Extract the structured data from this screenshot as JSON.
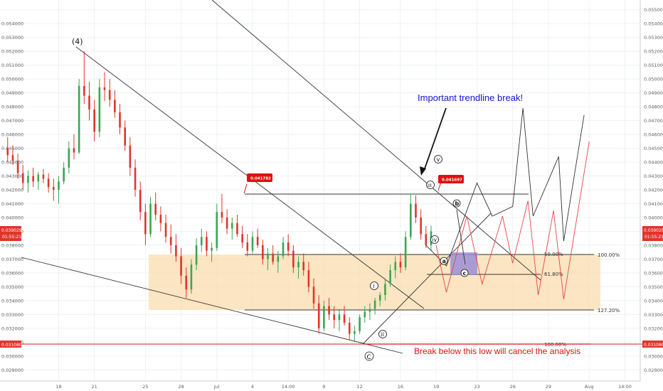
{
  "chart_data": {
    "type": "candlestick",
    "y_ticks": [
      "0.055000",
      "0.054000",
      "0.053000",
      "0.052000",
      "0.051000",
      "0.050000",
      "0.049000",
      "0.048000",
      "0.047000",
      "0.046000",
      "0.045000",
      "0.044000",
      "0.043000",
      "0.042000",
      "0.041000",
      "0.040000",
      "0.039000",
      "0.038000",
      "0.037000",
      "0.036000",
      "0.035000",
      "0.034000",
      "0.033000",
      "0.032000",
      "0.031000",
      "0.030000",
      "0.029000"
    ],
    "y_tick_values": [
      0.055,
      0.054,
      0.053,
      0.052,
      0.051,
      0.05,
      0.049,
      0.048,
      0.047,
      0.046,
      0.045,
      0.044,
      0.043,
      0.042,
      0.041,
      0.04,
      0.039,
      0.038,
      0.037,
      0.036,
      0.035,
      0.034,
      0.033,
      0.032,
      0.031,
      0.03,
      0.029
    ],
    "ylim": [
      0.0285,
      0.0555
    ],
    "x_ticks": [
      "18",
      "21",
      "25",
      "28",
      "Jul",
      "4",
      "14:00",
      "9",
      "12",
      "16",
      "19",
      "23",
      "26",
      "29",
      "Aug",
      "14:00"
    ],
    "x_tick_bars": [
      10,
      17,
      27,
      34,
      41,
      48,
      55,
      62,
      69,
      77,
      84,
      92,
      99,
      106,
      114,
      121
    ],
    "x_bar_range": [
      -1.5,
      124
    ],
    "current_price": {
      "value": 0.039029,
      "label": "0.039029",
      "time": "01:55:21"
    },
    "low_price": {
      "value": 0.03108,
      "label": "0.031080"
    },
    "callouts": [
      {
        "label": "0.041782",
        "bar": 42,
        "price": 0.041782
      },
      {
        "label": "0.041697",
        "bar": 80,
        "price": 0.041697
      }
    ],
    "fib_levels": [
      {
        "label": "50.00%",
        "price": 0.0373
      },
      {
        "label": "100.00%",
        "price": 0.0373
      },
      {
        "label": "61.80%",
        "price": 0.0359
      },
      {
        "label": "127.20%",
        "price": 0.0335
      },
      {
        "label": "100.00%",
        "price": 0.0311
      }
    ],
    "wave_labels": [
      "(4)",
      "C",
      "i",
      "ii",
      "iii",
      "iv",
      "v",
      "a",
      "b",
      "c"
    ],
    "annotations": {
      "trendline_break": "Important trendline break!",
      "cancel": "Break below this low will cancel the analysis"
    },
    "ohlc": [
      [
        0.045,
        0.0458,
        0.044,
        0.0445
      ],
      [
        0.0445,
        0.0452,
        0.0438,
        0.0441
      ],
      [
        0.0441,
        0.0446,
        0.0428,
        0.0432
      ],
      [
        0.0432,
        0.0438,
        0.042,
        0.0425
      ],
      [
        0.0425,
        0.0434,
        0.0418,
        0.043
      ],
      [
        0.043,
        0.0436,
        0.0422,
        0.0426
      ],
      [
        0.0426,
        0.0433,
        0.042,
        0.0431
      ],
      [
        0.0431,
        0.0435,
        0.0425,
        0.0428
      ],
      [
        0.0428,
        0.0432,
        0.0418,
        0.0422
      ],
      [
        0.0422,
        0.0428,
        0.0412,
        0.042
      ],
      [
        0.042,
        0.043,
        0.041,
        0.0426
      ],
      [
        0.0426,
        0.044,
        0.0424,
        0.0436
      ],
      [
        0.0436,
        0.0455,
        0.0432,
        0.045
      ],
      [
        0.045,
        0.046,
        0.0442,
        0.0447
      ],
      [
        0.0447,
        0.05,
        0.0446,
        0.0495
      ],
      [
        0.0495,
        0.052,
        0.0482,
        0.0488
      ],
      [
        0.0488,
        0.0498,
        0.047,
        0.0478
      ],
      [
        0.0478,
        0.0485,
        0.0455,
        0.0462
      ],
      [
        0.0462,
        0.05,
        0.0458,
        0.0494
      ],
      [
        0.0494,
        0.0505,
        0.0484,
        0.0492
      ],
      [
        0.0492,
        0.05,
        0.048,
        0.0485
      ],
      [
        0.0485,
        0.0492,
        0.0472,
        0.0476
      ],
      [
        0.0476,
        0.0482,
        0.046,
        0.0465
      ],
      [
        0.0465,
        0.047,
        0.0448,
        0.0452
      ],
      [
        0.0452,
        0.0458,
        0.043,
        0.0436
      ],
      [
        0.0436,
        0.0442,
        0.0415,
        0.042
      ],
      [
        0.042,
        0.0426,
        0.0398,
        0.0404
      ],
      [
        0.0404,
        0.041,
        0.038,
        0.0388
      ],
      [
        0.0388,
        0.0415,
        0.0386,
        0.041
      ],
      [
        0.041,
        0.0418,
        0.0398,
        0.0402
      ],
      [
        0.0402,
        0.0408,
        0.039,
        0.0396
      ],
      [
        0.0396,
        0.0402,
        0.0382,
        0.0386
      ],
      [
        0.0386,
        0.0395,
        0.0374,
        0.038
      ],
      [
        0.038,
        0.0388,
        0.0368,
        0.0372
      ],
      [
        0.0372,
        0.0378,
        0.0352,
        0.0358
      ],
      [
        0.0358,
        0.0364,
        0.0342,
        0.0348
      ],
      [
        0.0348,
        0.037,
        0.0345,
        0.0366
      ],
      [
        0.0366,
        0.0385,
        0.0362,
        0.038
      ],
      [
        0.038,
        0.0392,
        0.0375,
        0.0386
      ],
      [
        0.0386,
        0.039,
        0.0372,
        0.0376
      ],
      [
        0.0376,
        0.0382,
        0.0368,
        0.0378
      ],
      [
        0.0378,
        0.041,
        0.0376,
        0.0404
      ],
      [
        0.0404,
        0.0417,
        0.0396,
        0.04
      ],
      [
        0.04,
        0.0406,
        0.0388,
        0.0392
      ],
      [
        0.0392,
        0.04,
        0.0384,
        0.0396
      ],
      [
        0.0396,
        0.0402,
        0.0386,
        0.0388
      ],
      [
        0.0388,
        0.0394,
        0.0378,
        0.0382
      ],
      [
        0.0382,
        0.0388,
        0.0372,
        0.0376
      ],
      [
        0.0376,
        0.039,
        0.0374,
        0.0386
      ],
      [
        0.0386,
        0.0392,
        0.0378,
        0.038
      ],
      [
        0.038,
        0.0384,
        0.0366,
        0.037
      ],
      [
        0.037,
        0.0378,
        0.0362,
        0.0374
      ],
      [
        0.0374,
        0.038,
        0.0366,
        0.0368
      ],
      [
        0.0368,
        0.0376,
        0.036,
        0.0372
      ],
      [
        0.0372,
        0.0386,
        0.037,
        0.0382
      ],
      [
        0.0382,
        0.0388,
        0.0372,
        0.0376
      ],
      [
        0.0376,
        0.038,
        0.036,
        0.0364
      ],
      [
        0.0364,
        0.0372,
        0.0356,
        0.0368
      ],
      [
        0.0368,
        0.0374,
        0.0358,
        0.0362
      ],
      [
        0.0362,
        0.0368,
        0.0346,
        0.035
      ],
      [
        0.035,
        0.0356,
        0.0334,
        0.0338
      ],
      [
        0.0338,
        0.0344,
        0.0316,
        0.032
      ],
      [
        0.032,
        0.034,
        0.0318,
        0.0336
      ],
      [
        0.0336,
        0.0342,
        0.0326,
        0.033
      ],
      [
        0.033,
        0.0336,
        0.032,
        0.0326
      ],
      [
        0.0326,
        0.0334,
        0.0318,
        0.033
      ],
      [
        0.033,
        0.0336,
        0.0322,
        0.0324
      ],
      [
        0.0324,
        0.0328,
        0.0312,
        0.0316
      ],
      [
        0.0316,
        0.0322,
        0.031,
        0.0318
      ],
      [
        0.0318,
        0.033,
        0.0316,
        0.0328
      ],
      [
        0.0328,
        0.0336,
        0.0324,
        0.0332
      ],
      [
        0.0332,
        0.0338,
        0.0326,
        0.0334
      ],
      [
        0.0334,
        0.0342,
        0.033,
        0.034
      ],
      [
        0.034,
        0.0346,
        0.0336,
        0.0344
      ],
      [
        0.0344,
        0.0356,
        0.034,
        0.0352
      ],
      [
        0.0352,
        0.0366,
        0.035,
        0.0362
      ],
      [
        0.0362,
        0.0372,
        0.0356,
        0.0368
      ],
      [
        0.0368,
        0.0374,
        0.036,
        0.0364
      ],
      [
        0.0364,
        0.039,
        0.0362,
        0.0386
      ],
      [
        0.0386,
        0.0417,
        0.0384,
        0.041
      ],
      [
        0.041,
        0.0416,
        0.0396,
        0.04
      ],
      [
        0.04,
        0.0406,
        0.0384,
        0.0388
      ],
      [
        0.0388,
        0.0394,
        0.0378,
        0.038
      ],
      [
        0.038,
        0.0394,
        0.0376,
        0.039
      ]
    ],
    "projection_black": [
      [
        82,
        0.038
      ],
      [
        86,
        0.0365
      ],
      [
        92,
        0.0425
      ],
      [
        95,
        0.0401
      ],
      [
        99,
        0.0408
      ],
      [
        101,
        0.0479
      ],
      [
        103,
        0.0401
      ],
      [
        108,
        0.0444
      ],
      [
        109,
        0.0383
      ],
      [
        113,
        0.0474
      ]
    ],
    "projection_red": [
      [
        84,
        0.038
      ],
      [
        86,
        0.0346
      ],
      [
        90,
        0.0401
      ],
      [
        93,
        0.0352
      ],
      [
        97,
        0.0401
      ],
      [
        99,
        0.0367
      ],
      [
        102,
        0.0412
      ],
      [
        104,
        0.0344
      ],
      [
        107,
        0.0405
      ],
      [
        109,
        0.0341
      ],
      [
        114,
        0.0455
      ]
    ]
  }
}
